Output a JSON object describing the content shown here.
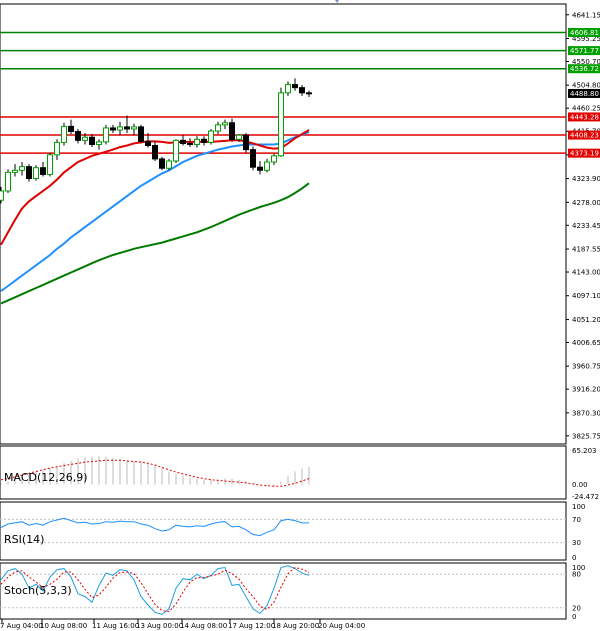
{
  "chart_data": [
    {
      "type": "candlestick",
      "name": "price",
      "ylim": [
        3810,
        4662
      ],
      "y_ticks": [
        4641.15,
        4595.25,
        4550.7,
        4504.8,
        4460.25,
        4415.7,
        4369.8,
        4323.9,
        4278.0,
        4233.45,
        4187.55,
        4143.0,
        4097.1,
        4051.2,
        4006.65,
        3960.75,
        3916.2,
        3870.3,
        3825.75
      ],
      "y_tick_labels": [
        "4641.15",
        "4595.25",
        "4550.70",
        "4504.80",
        "4460.25",
        "4415.70",
        "4369.80",
        "4323.90",
        "4278.00",
        "4233.45",
        "4187.55",
        "4143.00",
        "4097.10",
        "4051.20",
        "4006.65",
        "3960.75",
        "3916.20",
        "3870.30",
        "3825.75"
      ],
      "candles": [
        {
          "o": 4282,
          "h": 4308,
          "l": 4276,
          "c": 4300
        },
        {
          "o": 4300,
          "h": 4342,
          "l": 4296,
          "c": 4336
        },
        {
          "o": 4336,
          "h": 4352,
          "l": 4328,
          "c": 4340
        },
        {
          "o": 4340,
          "h": 4356,
          "l": 4330,
          "c": 4347
        },
        {
          "o": 4347,
          "h": 4352,
          "l": 4318,
          "c": 4324
        },
        {
          "o": 4324,
          "h": 4350,
          "l": 4320,
          "c": 4345
        },
        {
          "o": 4345,
          "h": 4356,
          "l": 4328,
          "c": 4332
        },
        {
          "o": 4332,
          "h": 4374,
          "l": 4328,
          "c": 4370
        },
        {
          "o": 4370,
          "h": 4400,
          "l": 4360,
          "c": 4394
        },
        {
          "o": 4394,
          "h": 4432,
          "l": 4388,
          "c": 4425
        },
        {
          "o": 4425,
          "h": 4438,
          "l": 4410,
          "c": 4415
        },
        {
          "o": 4415,
          "h": 4420,
          "l": 4392,
          "c": 4398
        },
        {
          "o": 4398,
          "h": 4412,
          "l": 4390,
          "c": 4404
        },
        {
          "o": 4404,
          "h": 4410,
          "l": 4385,
          "c": 4390
        },
        {
          "o": 4390,
          "h": 4400,
          "l": 4380,
          "c": 4395
        },
        {
          "o": 4395,
          "h": 4428,
          "l": 4390,
          "c": 4422
        },
        {
          "o": 4422,
          "h": 4428,
          "l": 4412,
          "c": 4418
        },
        {
          "o": 4418,
          "h": 4434,
          "l": 4408,
          "c": 4424
        },
        {
          "o": 4424,
          "h": 4446,
          "l": 4412,
          "c": 4420
        },
        {
          "o": 4420,
          "h": 4430,
          "l": 4408,
          "c": 4424
        },
        {
          "o": 4424,
          "h": 4428,
          "l": 4392,
          "c": 4396
        },
        {
          "o": 4396,
          "h": 4412,
          "l": 4384,
          "c": 4388
        },
        {
          "o": 4388,
          "h": 4396,
          "l": 4358,
          "c": 4362
        },
        {
          "o": 4362,
          "h": 4366,
          "l": 4340,
          "c": 4344
        },
        {
          "o": 4344,
          "h": 4362,
          "l": 4340,
          "c": 4358
        },
        {
          "o": 4358,
          "h": 4400,
          "l": 4354,
          "c": 4398
        },
        {
          "o": 4398,
          "h": 4408,
          "l": 4388,
          "c": 4392
        },
        {
          "o": 4392,
          "h": 4402,
          "l": 4385,
          "c": 4390
        },
        {
          "o": 4390,
          "h": 4406,
          "l": 4384,
          "c": 4400
        },
        {
          "o": 4400,
          "h": 4406,
          "l": 4388,
          "c": 4394
        },
        {
          "o": 4394,
          "h": 4420,
          "l": 4390,
          "c": 4416
        },
        {
          "o": 4416,
          "h": 4434,
          "l": 4410,
          "c": 4428
        },
        {
          "o": 4428,
          "h": 4438,
          "l": 4420,
          "c": 4432
        },
        {
          "o": 4432,
          "h": 4440,
          "l": 4395,
          "c": 4400
        },
        {
          "o": 4400,
          "h": 4410,
          "l": 4395,
          "c": 4408
        },
        {
          "o": 4408,
          "h": 4412,
          "l": 4374,
          "c": 4380
        },
        {
          "o": 4380,
          "h": 4386,
          "l": 4340,
          "c": 4346
        },
        {
          "o": 4346,
          "h": 4358,
          "l": 4332,
          "c": 4340
        },
        {
          "o": 4340,
          "h": 4362,
          "l": 4336,
          "c": 4356
        },
        {
          "o": 4356,
          "h": 4372,
          "l": 4350,
          "c": 4368
        },
        {
          "o": 4368,
          "h": 4500,
          "l": 4366,
          "c": 4490
        },
        {
          "o": 4490,
          "h": 4512,
          "l": 4484,
          "c": 4506
        },
        {
          "o": 4506,
          "h": 4518,
          "l": 4494,
          "c": 4500
        },
        {
          "o": 4500,
          "h": 4505,
          "l": 4484,
          "c": 4490
        },
        {
          "o": 4490,
          "h": 4494,
          "l": 4482,
          "c": 4488.8
        }
      ],
      "ma_red": [
        4196,
        4220,
        4244,
        4266,
        4280,
        4290,
        4300,
        4310,
        4322,
        4336,
        4346,
        4356,
        4362,
        4368,
        4372,
        4376,
        4380,
        4385,
        4388,
        4392,
        4394,
        4396,
        4396,
        4395,
        4393,
        4394,
        4395,
        4395,
        4395,
        4395,
        4395,
        4396,
        4397,
        4398,
        4398,
        4396,
        4392,
        4388,
        4384,
        4382,
        4383,
        4392,
        4402,
        4410,
        4418
      ],
      "ma_blue": [
        4106,
        4116,
        4126,
        4136,
        4146,
        4156,
        4166,
        4176,
        4188,
        4198,
        4210,
        4220,
        4230,
        4240,
        4250,
        4260,
        4270,
        4280,
        4290,
        4300,
        4310,
        4318,
        4326,
        4334,
        4340,
        4348,
        4356,
        4362,
        4368,
        4372,
        4376,
        4380,
        4383,
        4386,
        4388,
        4390,
        4390,
        4390,
        4390,
        4390,
        4392,
        4398,
        4404,
        4409,
        4414
      ],
      "ma_green": [
        4082,
        4088,
        4094,
        4100,
        4106,
        4112,
        4118,
        4124,
        4130,
        4136,
        4142,
        4148,
        4154,
        4160,
        4166,
        4171,
        4176,
        4180,
        4184,
        4188,
        4191,
        4194,
        4197,
        4200,
        4204,
        4208,
        4212,
        4216,
        4220,
        4225,
        4230,
        4236,
        4242,
        4248,
        4254,
        4259,
        4264,
        4269,
        4273,
        4277,
        4282,
        4288,
        4296,
        4305,
        4315
      ],
      "hlines_green": [
        {
          "value": 4606.81,
          "label": "4606.81"
        },
        {
          "value": 4571.77,
          "label": "4571.77"
        },
        {
          "value": 4536.72,
          "label": "4536.72"
        }
      ],
      "hlines_red": [
        {
          "value": 4443.28,
          "label": "4443.28"
        },
        {
          "value": 4408.23,
          "label": "4408.23"
        },
        {
          "value": 4373.19,
          "label": "4373.19"
        }
      ],
      "current_price": {
        "value": 4488.8,
        "label": "4488.80"
      }
    },
    {
      "type": "histogram",
      "name": "MACD",
      "title": "MACD(12,26,9)",
      "ylim": [
        -24.472,
        65.203
      ],
      "y_tick_labels": [
        "65.203",
        "0.00",
        "-24.472"
      ],
      "histogram": [
        2,
        5,
        9,
        14,
        18,
        22,
        25,
        28,
        32,
        36,
        40,
        44,
        46,
        47,
        48,
        47,
        45,
        43,
        41,
        40,
        39,
        37,
        33,
        28,
        22,
        18,
        15,
        12,
        10,
        8,
        8,
        9,
        10,
        10,
        8,
        5,
        2,
        0,
        -1,
        -2,
        5,
        14,
        22,
        27,
        30
      ],
      "signal": [
        8,
        10,
        13,
        16,
        19,
        22,
        25,
        28,
        30,
        32,
        34,
        36,
        38,
        39,
        40,
        41,
        41,
        41,
        40,
        39,
        38,
        36,
        33,
        29,
        25,
        21,
        18,
        15,
        12,
        10,
        8,
        7,
        6,
        5,
        4,
        3,
        1,
        -1,
        -2,
        -3,
        -3,
        -1,
        2,
        6,
        10
      ]
    },
    {
      "type": "line",
      "name": "RSI",
      "title": "RSI(14)",
      "ylim": [
        0,
        100
      ],
      "y_tick_labels": [
        "100",
        "70",
        "30",
        "0"
      ],
      "values": [
        56,
        62,
        64,
        66,
        60,
        63,
        60,
        66,
        69,
        72,
        68,
        64,
        65,
        62,
        63,
        66,
        65,
        67,
        66,
        66,
        62,
        60,
        54,
        50,
        52,
        60,
        58,
        57,
        59,
        58,
        62,
        65,
        66,
        57,
        58,
        52,
        44,
        42,
        48,
        52,
        68,
        70,
        68,
        64,
        64
      ]
    },
    {
      "type": "line",
      "name": "Stochastic",
      "title": "Stoch(5,3,3)",
      "ylim": [
        0,
        100
      ],
      "y_tick_labels": [
        "100",
        "80",
        "20",
        "0"
      ],
      "k": [
        70,
        86,
        90,
        80,
        55,
        62,
        50,
        75,
        88,
        90,
        75,
        45,
        40,
        30,
        60,
        82,
        78,
        88,
        86,
        70,
        40,
        25,
        12,
        8,
        18,
        55,
        72,
        70,
        80,
        72,
        78,
        90,
        92,
        60,
        62,
        40,
        18,
        10,
        24,
        55,
        92,
        95,
        90,
        82,
        78
      ],
      "d": [
        62,
        75,
        84,
        86,
        75,
        66,
        56,
        62,
        71,
        84,
        84,
        70,
        53,
        38,
        43,
        57,
        73,
        83,
        84,
        81,
        65,
        45,
        26,
        15,
        13,
        27,
        48,
        66,
        74,
        74,
        77,
        80,
        87,
        81,
        71,
        54,
        40,
        23,
        17,
        30,
        57,
        81,
        92,
        89,
        83
      ]
    }
  ],
  "time_axis": {
    "labels": [
      "7 Aug 04:00",
      "10 Aug 08:00",
      "11 Aug 16:00",
      "13 Aug 00:00",
      "14 Aug 08:00",
      "17 Aug 12:00",
      "18 Aug 20:00",
      "20 Aug 04:00"
    ]
  }
}
